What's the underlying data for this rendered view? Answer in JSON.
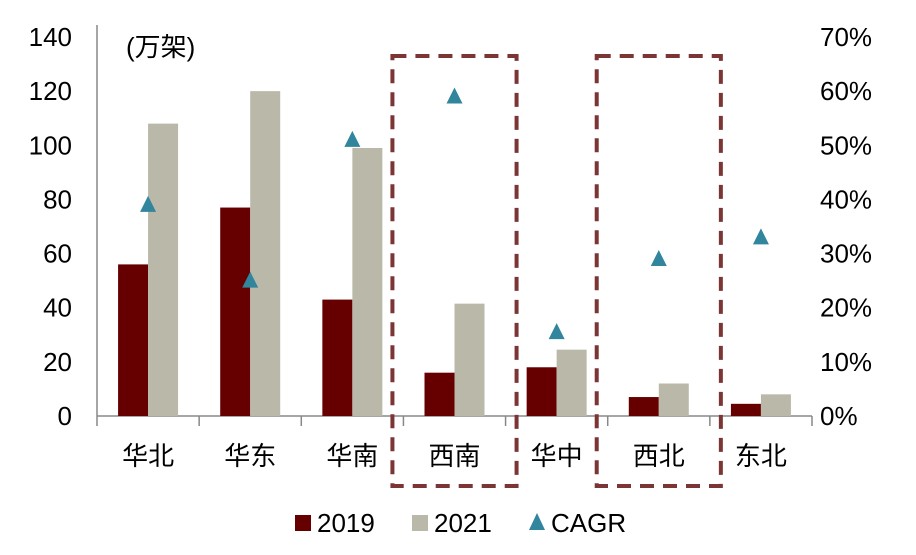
{
  "chart_data": {
    "type": "bar",
    "unit_label": "(万架)",
    "categories": [
      "华北",
      "华东",
      "华南",
      "西南",
      "华中",
      "西北",
      "东北"
    ],
    "series": [
      {
        "name": "2019",
        "axis": "left",
        "kind": "bar",
        "color": "#660000",
        "values": [
          56,
          77,
          43,
          16,
          18,
          7,
          4.5
        ]
      },
      {
        "name": "2021",
        "axis": "left",
        "kind": "bar",
        "color": "#BAB8A8",
        "values": [
          108,
          120,
          99,
          41.5,
          24.5,
          12,
          8
        ]
      },
      {
        "name": "CAGR",
        "axis": "right",
        "kind": "scatter",
        "marker": "triangle",
        "color": "#31859C",
        "values": [
          39,
          25,
          51,
          59,
          15.5,
          29,
          33
        ]
      }
    ],
    "ylim_left": [
      0,
      140
    ],
    "yticks_left": [
      "0",
      "20",
      "40",
      "60",
      "80",
      "100",
      "120",
      "140"
    ],
    "ylim_right": [
      0,
      70
    ],
    "yticks_right": [
      "0%",
      "10%",
      "20%",
      "30%",
      "40%",
      "50%",
      "60%",
      "70%"
    ],
    "highlighted_categories": [
      "西南",
      "西北"
    ],
    "highlight_color": "#7B3535",
    "legend_position": "bottom",
    "grid": false
  }
}
